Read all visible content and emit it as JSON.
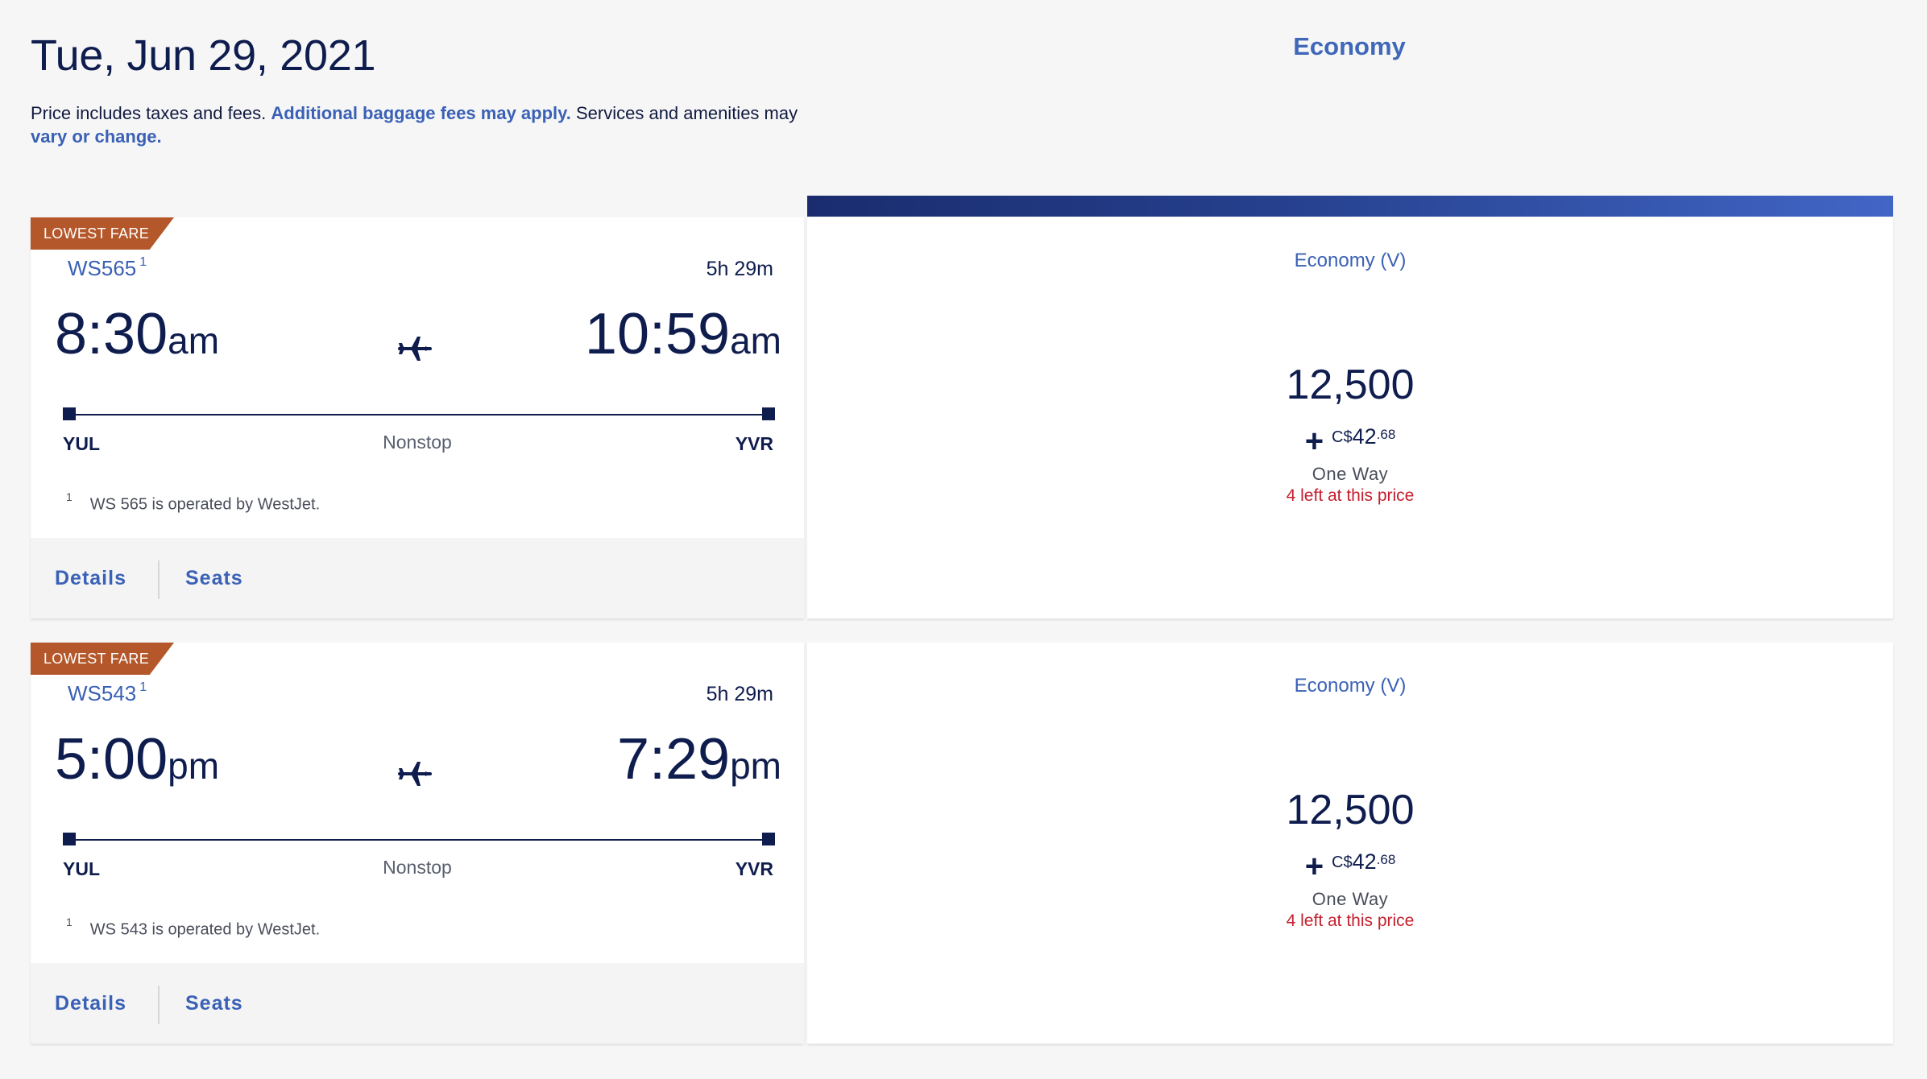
{
  "header": {
    "date": "Tue, Jun 29, 2021",
    "cabin": "Economy",
    "disclaimer_start": "Price includes taxes and fees.",
    "disclaimer_link": "Additional baggage fees may apply.",
    "disclaimer_mid": "Services and amenities may",
    "disclaimer_link2": "vary or change."
  },
  "flights": [
    {
      "badge": "LOWEST FARE",
      "flight_number": "WS565",
      "footnote_ref": "1",
      "duration": "5h 29m",
      "depart_time": "8:30",
      "depart_ampm": "am",
      "arrive_time": "10:59",
      "arrive_ampm": "am",
      "origin": "YUL",
      "destination": "YVR",
      "stops": "Nonstop",
      "footnote_num": "1",
      "footnote_text": "WS 565 is operated by WestJet.",
      "details_label": "Details",
      "seats_label": "Seats",
      "fare": {
        "fare_class": "Economy (V)",
        "miles": "12,500",
        "plus": "+",
        "currency": "C$",
        "amount": "42",
        "cents": ".68",
        "trip_type": "One Way",
        "seats_left": "4 left at this price"
      }
    },
    {
      "badge": "LOWEST FARE",
      "flight_number": "WS543",
      "footnote_ref": "1",
      "duration": "5h 29m",
      "depart_time": "5:00",
      "depart_ampm": "pm",
      "arrive_time": "7:29",
      "arrive_ampm": "pm",
      "origin": "YUL",
      "destination": "YVR",
      "stops": "Nonstop",
      "footnote_num": "1",
      "footnote_text": "WS 543 is operated by WestJet.",
      "details_label": "Details",
      "seats_label": "Seats",
      "fare": {
        "fare_class": "Economy (V)",
        "miles": "12,500",
        "plus": "+",
        "currency": "C$",
        "amount": "42",
        "cents": ".68",
        "trip_type": "One Way",
        "seats_left": "4 left at this price"
      }
    }
  ],
  "icons": {
    "plane": "airplane-icon"
  },
  "colors": {
    "navy": "#0f1d4e",
    "link_blue": "#3a61b5",
    "badge": "#b4582b",
    "alert_red": "#c41f2c"
  }
}
